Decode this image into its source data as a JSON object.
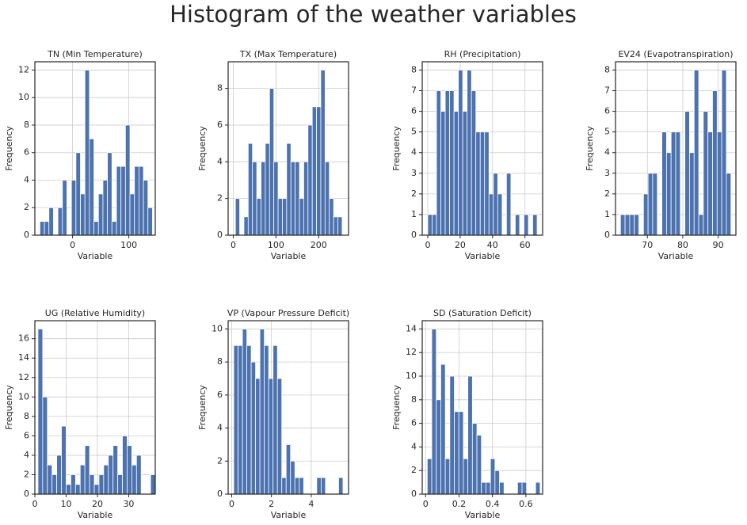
{
  "title": "Histogram of the weather variables",
  "chart_data": [
    {
      "type": "histogram",
      "title": "TN (Min Temperature)",
      "xlabel": "Variable",
      "ylabel": "Frequency",
      "color": "#4c72b0",
      "grid": true,
      "bins": [
        -58,
        -50,
        -42,
        -34,
        -26,
        -18,
        -10,
        -2,
        6,
        14,
        22,
        30,
        38,
        46,
        54,
        62,
        70,
        78,
        86,
        94,
        102,
        110,
        118,
        126,
        134,
        142
      ],
      "values": [
        1,
        1,
        2,
        0,
        2,
        4,
        0,
        4,
        6,
        3,
        12,
        7,
        1,
        3,
        4,
        6,
        1,
        5,
        5,
        8,
        3,
        5,
        5,
        4,
        2
      ],
      "xlim": [
        -67,
        147
      ],
      "ylim": [
        0,
        12.6
      ],
      "xticks": [
        0,
        100
      ],
      "yticks": [
        0,
        2,
        4,
        6,
        8,
        10,
        12
      ]
    },
    {
      "type": "histogram",
      "title": "TX (Max Temperature)",
      "xlabel": "Variable",
      "ylabel": "Frequency",
      "color": "#4c72b0",
      "grid": true,
      "bins": [
        5,
        15,
        25,
        35,
        45,
        55,
        65,
        75,
        85,
        95,
        105,
        115,
        125,
        135,
        145,
        155,
        165,
        175,
        185,
        195,
        205,
        215,
        225,
        235,
        245,
        255
      ],
      "values": [
        2,
        0,
        1,
        5,
        4,
        2,
        4,
        5,
        8,
        4,
        2,
        2,
        5,
        4,
        4,
        2,
        4,
        6,
        7,
        7,
        9,
        4,
        2,
        1,
        1
      ],
      "xlim": [
        -12,
        270
      ],
      "ylim": [
        0,
        9.45
      ],
      "xticks": [
        0,
        100,
        200
      ],
      "yticks": [
        0,
        2,
        4,
        6,
        8
      ]
    },
    {
      "type": "histogram",
      "title": "RH (Precipitation)",
      "xlabel": "Variable",
      "ylabel": "Frequency",
      "color": "#4c72b0",
      "grid": true,
      "bins": [
        0,
        2.7,
        5.4,
        8.1,
        10.8,
        13.5,
        16.2,
        18.9,
        21.6,
        24.3,
        27,
        29.7,
        32.4,
        35.1,
        37.8,
        40.5,
        43.2,
        45.9,
        48.6,
        51.3,
        54,
        56.7,
        59.4,
        62.1,
        64.8,
        67.5
      ],
      "values": [
        1,
        1,
        7,
        6,
        7,
        7,
        6,
        8,
        6,
        8,
        7,
        5,
        5,
        5,
        2,
        3,
        2,
        0,
        3,
        0,
        1,
        0,
        1,
        0,
        1
      ],
      "xlim": [
        -3.4,
        70.9
      ],
      "ylim": [
        0,
        8.4
      ],
      "xticks": [
        0,
        20,
        40,
        60
      ],
      "yticks": [
        0,
        1,
        2,
        3,
        4,
        5,
        6,
        7,
        8
      ]
    },
    {
      "type": "histogram",
      "title": "EV24 (Evapotranspiration)",
      "xlabel": "Variable",
      "ylabel": "Frequency",
      "color": "#4c72b0",
      "grid": true,
      "bins": [
        62.4,
        63.7,
        65,
        66.3,
        67.6,
        68.9,
        70.2,
        71.5,
        72.8,
        74.1,
        75.4,
        76.7,
        78,
        79.3,
        80.6,
        81.9,
        83.2,
        84.5,
        85.8,
        87.1,
        88.4,
        89.7,
        91,
        92.3,
        93.6
      ],
      "values": [
        1,
        1,
        1,
        1,
        0,
        2,
        3,
        3,
        0,
        5,
        4,
        5,
        5,
        0,
        6,
        4,
        8,
        1,
        6,
        5,
        7,
        5,
        8,
        3
      ],
      "xlim": [
        61,
        95
      ],
      "ylim": [
        0,
        8.4
      ],
      "xticks": [
        70,
        80,
        90
      ],
      "yticks": [
        0,
        1,
        2,
        3,
        4,
        5,
        6,
        7,
        8
      ]
    },
    {
      "type": "histogram",
      "title": "UG (Relative Humidity)",
      "xlabel": "Variable",
      "ylabel": "Frequency",
      "color": "#4c72b0",
      "grid": true,
      "bins": [
        1,
        2.5,
        4,
        5.5,
        7,
        8.5,
        10,
        11.5,
        13,
        14.5,
        16,
        17.5,
        19,
        20.5,
        22,
        23.5,
        25,
        26.5,
        28,
        29.5,
        31,
        32.5,
        34,
        35.5,
        37,
        38.5
      ],
      "values": [
        17,
        10,
        3,
        2,
        4,
        7,
        1,
        2,
        1,
        3,
        5,
        2,
        1,
        2,
        3,
        4,
        5,
        2,
        6,
        5,
        3,
        4,
        0,
        0,
        2
      ],
      "xlim": [
        0,
        38.5
      ],
      "ylim": [
        0,
        17.85
      ],
      "xticks": [
        0,
        10,
        20,
        30
      ],
      "yticks": [
        0,
        2,
        4,
        6,
        8,
        10,
        12,
        14,
        16
      ]
    },
    {
      "type": "histogram",
      "title": "VP (Vapour Pressure Deficit)",
      "xlabel": "Variable",
      "ylabel": "Frequency",
      "color": "#4c72b0",
      "grid": true,
      "bins": [
        0.1,
        0.32,
        0.54,
        0.76,
        0.98,
        1.2,
        1.42,
        1.64,
        1.86,
        2.08,
        2.3,
        2.52,
        2.74,
        2.96,
        3.18,
        3.4,
        3.62,
        3.84,
        4.06,
        4.28,
        4.5,
        4.72,
        4.94,
        5.16,
        5.38,
        5.6
      ],
      "values": [
        9,
        9,
        10,
        9,
        8,
        7,
        10,
        9,
        7,
        9,
        7,
        1,
        3,
        2,
        1,
        1,
        0,
        0,
        0,
        1,
        1,
        0,
        0,
        0,
        1
      ],
      "xlim": [
        -0.18,
        5.88
      ],
      "ylim": [
        0,
        10.5
      ],
      "xticks": [
        0,
        2,
        4
      ],
      "yticks": [
        0,
        2,
        4,
        6,
        8,
        10
      ]
    },
    {
      "type": "histogram",
      "title": "SD (Saturation Deficit)",
      "xlabel": "Variable",
      "ylabel": "Frequency",
      "color": "#4c72b0",
      "grid": true,
      "bins": [
        0.01,
        0.037,
        0.064,
        0.091,
        0.118,
        0.145,
        0.172,
        0.199,
        0.226,
        0.253,
        0.28,
        0.307,
        0.334,
        0.361,
        0.388,
        0.415,
        0.442,
        0.469,
        0.496,
        0.523,
        0.55,
        0.577,
        0.604,
        0.631,
        0.658,
        0.685
      ],
      "values": [
        3,
        14,
        8,
        11,
        3,
        10,
        7,
        7,
        3,
        10,
        6,
        5,
        1,
        1,
        3,
        2,
        1,
        0,
        0,
        0,
        1,
        1,
        0,
        0,
        1
      ],
      "xlim": [
        -0.02,
        0.7
      ],
      "ylim": [
        0,
        14.7
      ],
      "xticks": [
        0,
        0.2,
        0.4,
        0.6
      ],
      "yticks": [
        0,
        2,
        4,
        6,
        8,
        10,
        12,
        14
      ]
    }
  ]
}
